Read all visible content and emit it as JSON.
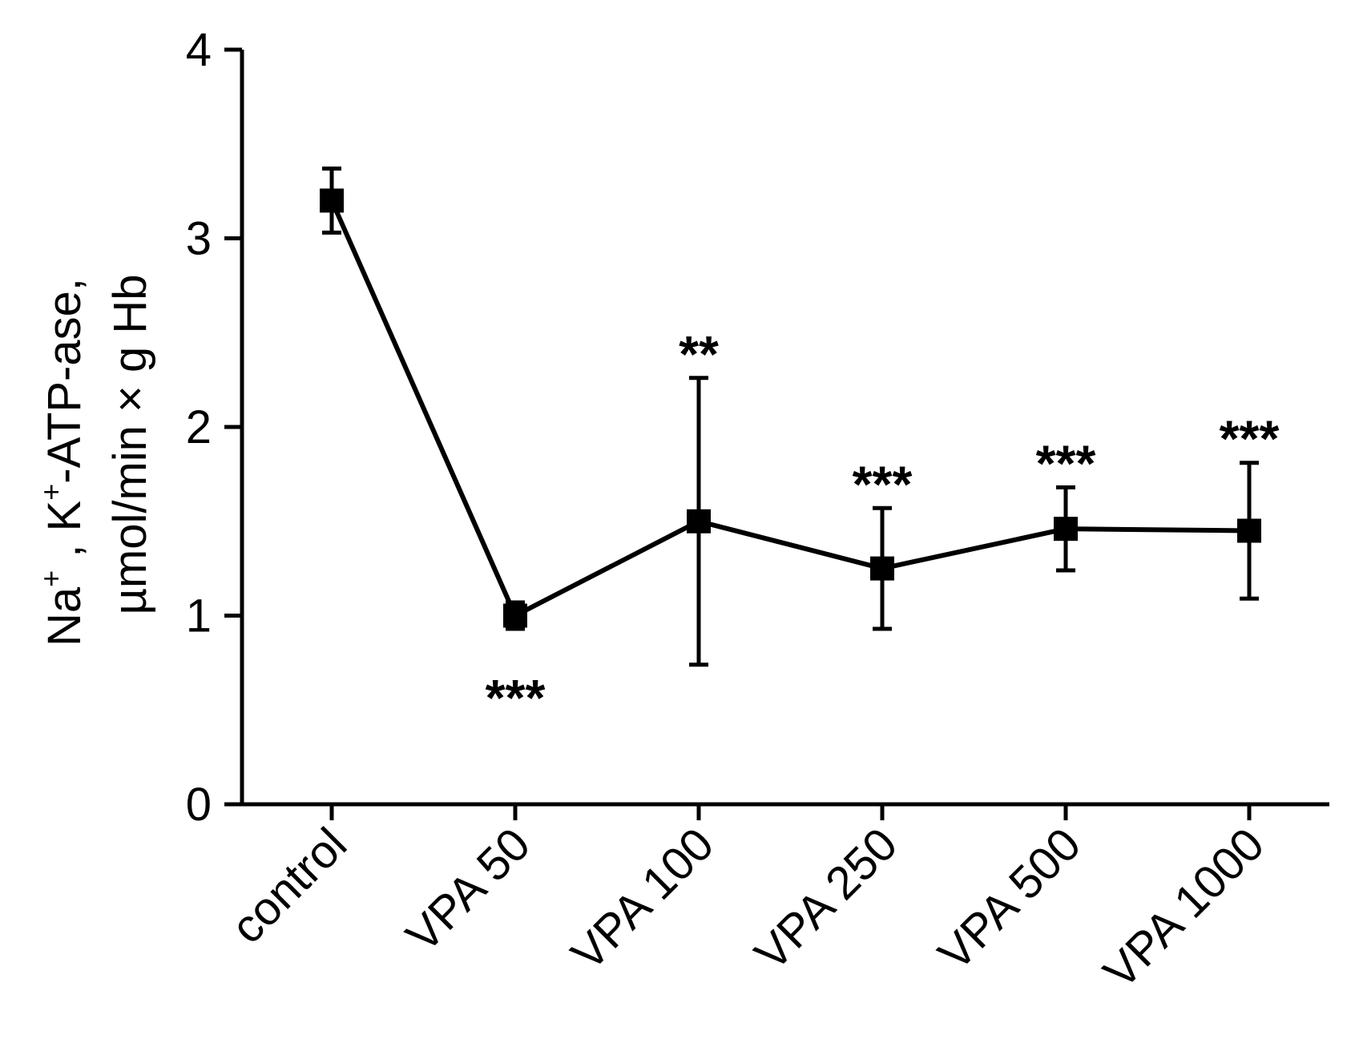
{
  "chart_data": {
    "type": "line",
    "title": "",
    "xlabel": "",
    "ylabel": {
      "line1": {
        "na": "Na",
        "na_sup": "+",
        "sep": " , ",
        "k": "K",
        "k_sup": "+",
        "rest": "-ATP-ase,"
      },
      "line2": "µmol/min × g Hb"
    },
    "ylim": [
      0,
      4
    ],
    "yticks": [
      "0",
      "1",
      "2",
      "3",
      "4"
    ],
    "categories": [
      "control",
      "VPA 50",
      "VPA 100",
      "VPA 250",
      "VPA 500",
      "VPA 1000"
    ],
    "series": [
      {
        "name": "Na+, K+-ATP-ase",
        "values": [
          3.2,
          1.0,
          1.5,
          1.25,
          1.46,
          1.45
        ],
        "error_low": [
          3.03,
          0.93,
          0.74,
          0.93,
          1.24,
          1.09
        ],
        "error_high": [
          3.37,
          1.07,
          2.26,
          1.57,
          1.68,
          1.81
        ],
        "significance": [
          "",
          "***",
          "**",
          "***",
          "***",
          "***"
        ],
        "significance_side": [
          "",
          "below",
          "above",
          "above",
          "above",
          "above"
        ]
      }
    ],
    "colors": {
      "line": "#000000",
      "axis": "#000000",
      "background": "#ffffff"
    }
  }
}
